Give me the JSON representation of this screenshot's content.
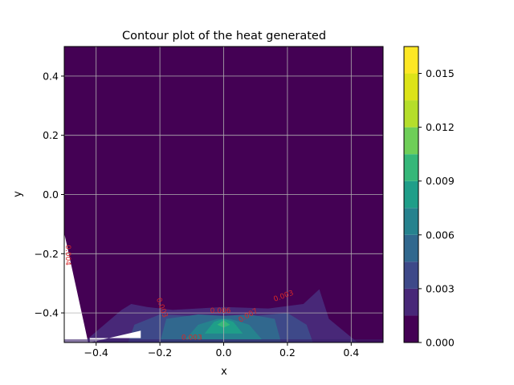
{
  "chart_data": {
    "type": "contour",
    "title": "Contour plot of the heat generated",
    "xlabel": "x",
    "ylabel": "y",
    "xlim": [
      -0.5,
      0.5
    ],
    "ylim": [
      -0.5,
      0.5
    ],
    "xticks": [
      -0.4,
      -0.2,
      0.0,
      0.2,
      0.4
    ],
    "xtick_labels": [
      "−0.4",
      "−0.2",
      "0.0",
      "0.2",
      "0.4"
    ],
    "yticks": [
      -0.4,
      -0.2,
      0.0,
      0.2,
      0.4
    ],
    "ytick_labels": [
      "−0.4",
      "−0.2",
      "0.0",
      "0.2",
      "0.4"
    ],
    "grid": true,
    "colorbar": {
      "vmin": 0.0,
      "vmax": 0.0165,
      "levels": [
        0.0,
        0.0015,
        0.003,
        0.0045,
        0.006,
        0.0075,
        0.009,
        0.0105,
        0.012,
        0.0135,
        0.015,
        0.0165
      ],
      "colors": [
        "#440154",
        "#482878",
        "#3e4989",
        "#31688e",
        "#26828e",
        "#1f9e89",
        "#35b779",
        "#6ece58",
        "#b5de2b",
        "#dde318",
        "#fde725"
      ],
      "ticks": [
        0.0,
        0.003,
        0.006,
        0.009,
        0.012,
        0.015
      ],
      "tick_labels": [
        "0.000",
        "0.003",
        "0.006",
        "0.009",
        "0.012",
        "0.015"
      ]
    },
    "regions": [
      {
        "level_index": 1,
        "points": [
          [
            -0.34,
            -0.5
          ],
          [
            -0.3,
            -0.385
          ],
          [
            -0.28,
            -0.43
          ],
          [
            -0.22,
            -0.39
          ],
          [
            -0.1,
            -0.405
          ],
          [
            0.0,
            -0.41
          ],
          [
            0.1,
            -0.405
          ],
          [
            0.18,
            -0.39
          ],
          [
            0.255,
            -0.4
          ],
          [
            0.29,
            -0.38
          ],
          [
            0.32,
            -0.43
          ],
          [
            0.34,
            -0.5
          ]
        ]
      },
      {
        "level_index": 1,
        "points": [
          [
            -0.44,
            -0.5
          ],
          [
            -0.32,
            -0.39
          ],
          [
            -0.29,
            -0.37
          ],
          [
            -0.24,
            -0.38
          ],
          [
            -0.16,
            -0.39
          ],
          [
            0.0,
            -0.38
          ],
          [
            0.14,
            -0.385
          ],
          [
            0.25,
            -0.37
          ],
          [
            0.3,
            -0.32
          ],
          [
            0.33,
            -0.42
          ],
          [
            0.42,
            -0.5
          ]
        ]
      },
      {
        "level_index": 2,
        "points": [
          [
            -0.3,
            -0.5
          ],
          [
            -0.28,
            -0.44
          ],
          [
            -0.2,
            -0.405
          ],
          [
            -0.1,
            -0.41
          ],
          [
            0.0,
            -0.415
          ],
          [
            0.1,
            -0.41
          ],
          [
            0.2,
            -0.4
          ],
          [
            0.26,
            -0.44
          ],
          [
            0.28,
            -0.5
          ]
        ]
      },
      {
        "level_index": 3,
        "points": [
          [
            -0.2,
            -0.5
          ],
          [
            -0.18,
            -0.42
          ],
          [
            -0.08,
            -0.405
          ],
          [
            0.0,
            -0.41
          ],
          [
            0.08,
            -0.405
          ],
          [
            0.16,
            -0.42
          ],
          [
            0.18,
            -0.5
          ]
        ]
      },
      {
        "level_index": 4,
        "points": [
          [
            -0.12,
            -0.49
          ],
          [
            -0.08,
            -0.44
          ],
          [
            -0.02,
            -0.42
          ],
          [
            0.02,
            -0.42
          ],
          [
            0.08,
            -0.44
          ],
          [
            0.12,
            -0.49
          ]
        ]
      },
      {
        "level_index": 5,
        "points": [
          [
            -0.06,
            -0.47
          ],
          [
            -0.03,
            -0.43
          ],
          [
            0.0,
            -0.42
          ],
          [
            0.03,
            -0.43
          ],
          [
            0.06,
            -0.47
          ]
        ]
      },
      {
        "level_index": 6,
        "points": [
          [
            -0.02,
            -0.44
          ],
          [
            0.0,
            -0.425
          ],
          [
            0.02,
            -0.44
          ],
          [
            0.0,
            -0.45
          ]
        ]
      }
    ],
    "contour_labels": [
      {
        "text": "0.003",
        "x": -0.1,
        "y": -0.49,
        "rotate": 0
      },
      {
        "text": "0.006",
        "x": -0.01,
        "y": -0.4,
        "rotate": 0
      },
      {
        "text": "0.003",
        "x": -0.2,
        "y": -0.385,
        "rotate": 70
      },
      {
        "text": "0.007",
        "x": 0.08,
        "y": -0.415,
        "rotate": -30
      },
      {
        "text": "0.003",
        "x": 0.19,
        "y": -0.35,
        "rotate": -20
      },
      {
        "text": "0.004",
        "x": -0.495,
        "y": -0.205,
        "rotate": 90
      }
    ],
    "blank_regions": [
      {
        "points": [
          [
            -0.5,
            -0.13
          ],
          [
            -0.5,
            -0.5
          ],
          [
            -0.425,
            -0.5
          ]
        ]
      },
      {
        "points": [
          [
            -0.42,
            -0.5
          ],
          [
            -0.26,
            -0.46
          ],
          [
            -0.26,
            -0.485
          ],
          [
            -0.42,
            -0.485
          ]
        ]
      }
    ],
    "contour_label_color": "#d62728"
  }
}
